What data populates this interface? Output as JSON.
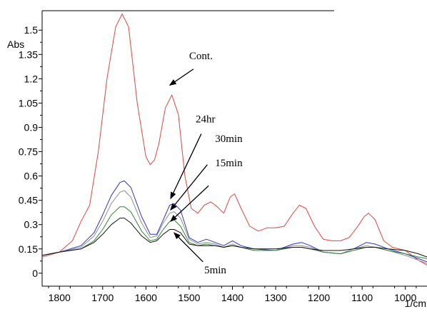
{
  "chart_data": {
    "type": "line",
    "xlabel": "1/cm",
    "ylabel": "Abs",
    "xlim": [
      1840,
      950
    ],
    "x_reversed": true,
    "ylim": [
      -0.08,
      1.62
    ],
    "x_ticks": [
      1800,
      1700,
      1600,
      1500,
      1400,
      1300,
      1200,
      1100,
      1000
    ],
    "x_tick_labels": [
      "1800",
      "1700",
      "1600",
      "1500",
      "1400",
      "1300",
      "1200",
      "1100",
      "1000"
    ],
    "y_ticks": [
      0,
      0.15,
      0.3,
      0.45,
      0.6,
      0.75,
      0.9,
      1.05,
      1.2,
      1.35,
      1.5
    ],
    "y_tick_labels": [
      "0",
      "0.15",
      "0.3",
      "0.45",
      "0.6",
      "0.75",
      "0.9",
      "1.05",
      "1.2",
      "1.35",
      "1.5"
    ],
    "grid": false,
    "legend": "none",
    "series": [
      {
        "name": "Cont.",
        "color": "#e8433b",
        "points": [
          [
            1840,
            0.1
          ],
          [
            1800,
            0.13
          ],
          [
            1770,
            0.2
          ],
          [
            1750,
            0.32
          ],
          [
            1730,
            0.42
          ],
          [
            1710,
            0.75
          ],
          [
            1690,
            1.2
          ],
          [
            1670,
            1.52
          ],
          [
            1655,
            1.6
          ],
          [
            1640,
            1.52
          ],
          [
            1620,
            1.05
          ],
          [
            1600,
            0.72
          ],
          [
            1590,
            0.67
          ],
          [
            1580,
            0.7
          ],
          [
            1570,
            0.8
          ],
          [
            1555,
            1.02
          ],
          [
            1540,
            1.1
          ],
          [
            1525,
            0.98
          ],
          [
            1510,
            0.6
          ],
          [
            1495,
            0.4
          ],
          [
            1480,
            0.37
          ],
          [
            1465,
            0.42
          ],
          [
            1450,
            0.44
          ],
          [
            1435,
            0.41
          ],
          [
            1420,
            0.37
          ],
          [
            1405,
            0.47
          ],
          [
            1395,
            0.49
          ],
          [
            1380,
            0.4
          ],
          [
            1360,
            0.29
          ],
          [
            1340,
            0.26
          ],
          [
            1320,
            0.28
          ],
          [
            1300,
            0.28
          ],
          [
            1280,
            0.29
          ],
          [
            1260,
            0.37
          ],
          [
            1245,
            0.42
          ],
          [
            1230,
            0.4
          ],
          [
            1210,
            0.29
          ],
          [
            1190,
            0.21
          ],
          [
            1170,
            0.2
          ],
          [
            1150,
            0.2
          ],
          [
            1130,
            0.22
          ],
          [
            1110,
            0.29
          ],
          [
            1095,
            0.35
          ],
          [
            1085,
            0.37
          ],
          [
            1070,
            0.33
          ],
          [
            1050,
            0.2
          ],
          [
            1030,
            0.16
          ],
          [
            1000,
            0.14
          ],
          [
            970,
            0.08
          ],
          [
            950,
            0.05
          ]
        ]
      },
      {
        "name": "24hr",
        "color": "#2f33c8",
        "points": [
          [
            1840,
            0.11
          ],
          [
            1800,
            0.13
          ],
          [
            1750,
            0.17
          ],
          [
            1720,
            0.25
          ],
          [
            1700,
            0.36
          ],
          [
            1680,
            0.48
          ],
          [
            1660,
            0.56
          ],
          [
            1650,
            0.57
          ],
          [
            1635,
            0.53
          ],
          [
            1610,
            0.35
          ],
          [
            1590,
            0.24
          ],
          [
            1575,
            0.24
          ],
          [
            1560,
            0.33
          ],
          [
            1545,
            0.42
          ],
          [
            1535,
            0.43
          ],
          [
            1520,
            0.39
          ],
          [
            1500,
            0.22
          ],
          [
            1480,
            0.19
          ],
          [
            1460,
            0.21
          ],
          [
            1440,
            0.19
          ],
          [
            1420,
            0.17
          ],
          [
            1400,
            0.2
          ],
          [
            1380,
            0.17
          ],
          [
            1350,
            0.15
          ],
          [
            1300,
            0.14
          ],
          [
            1260,
            0.18
          ],
          [
            1240,
            0.19
          ],
          [
            1220,
            0.17
          ],
          [
            1190,
            0.13
          ],
          [
            1150,
            0.12
          ],
          [
            1120,
            0.15
          ],
          [
            1090,
            0.19
          ],
          [
            1070,
            0.18
          ],
          [
            1040,
            0.15
          ],
          [
            1000,
            0.12
          ],
          [
            970,
            0.09
          ],
          [
            950,
            0.07
          ]
        ]
      },
      {
        "name": "30min",
        "color": "#8e8e96",
        "points": [
          [
            1840,
            0.11
          ],
          [
            1800,
            0.13
          ],
          [
            1750,
            0.16
          ],
          [
            1720,
            0.23
          ],
          [
            1700,
            0.32
          ],
          [
            1680,
            0.43
          ],
          [
            1660,
            0.5
          ],
          [
            1650,
            0.51
          ],
          [
            1635,
            0.47
          ],
          [
            1610,
            0.31
          ],
          [
            1590,
            0.22
          ],
          [
            1575,
            0.23
          ],
          [
            1560,
            0.31
          ],
          [
            1545,
            0.37
          ],
          [
            1535,
            0.38
          ],
          [
            1520,
            0.34
          ],
          [
            1500,
            0.21
          ],
          [
            1480,
            0.18
          ],
          [
            1460,
            0.19
          ],
          [
            1440,
            0.18
          ],
          [
            1420,
            0.16
          ],
          [
            1400,
            0.18
          ],
          [
            1380,
            0.16
          ],
          [
            1350,
            0.14
          ],
          [
            1300,
            0.14
          ],
          [
            1260,
            0.17
          ],
          [
            1240,
            0.17
          ],
          [
            1220,
            0.16
          ],
          [
            1190,
            0.13
          ],
          [
            1150,
            0.12
          ],
          [
            1120,
            0.15
          ],
          [
            1090,
            0.17
          ],
          [
            1070,
            0.16
          ],
          [
            1040,
            0.14
          ],
          [
            1000,
            0.11
          ],
          [
            970,
            0.08
          ],
          [
            950,
            0.06
          ]
        ]
      },
      {
        "name": "15min",
        "color": "#2f8a2f",
        "points": [
          [
            1840,
            0.11
          ],
          [
            1800,
            0.13
          ],
          [
            1750,
            0.15
          ],
          [
            1720,
            0.2
          ],
          [
            1700,
            0.27
          ],
          [
            1680,
            0.36
          ],
          [
            1660,
            0.41
          ],
          [
            1650,
            0.41
          ],
          [
            1635,
            0.38
          ],
          [
            1610,
            0.26
          ],
          [
            1590,
            0.2
          ],
          [
            1575,
            0.21
          ],
          [
            1560,
            0.27
          ],
          [
            1545,
            0.32
          ],
          [
            1535,
            0.33
          ],
          [
            1520,
            0.29
          ],
          [
            1500,
            0.19
          ],
          [
            1480,
            0.17
          ],
          [
            1460,
            0.18
          ],
          [
            1440,
            0.17
          ],
          [
            1420,
            0.16
          ],
          [
            1400,
            0.17
          ],
          [
            1380,
            0.16
          ],
          [
            1350,
            0.14
          ],
          [
            1300,
            0.14
          ],
          [
            1260,
            0.16
          ],
          [
            1240,
            0.16
          ],
          [
            1220,
            0.15
          ],
          [
            1190,
            0.13
          ],
          [
            1150,
            0.12
          ],
          [
            1120,
            0.14
          ],
          [
            1090,
            0.16
          ],
          [
            1070,
            0.16
          ],
          [
            1040,
            0.14
          ],
          [
            1000,
            0.12
          ],
          [
            970,
            0.1
          ],
          [
            950,
            0.09
          ]
        ]
      },
      {
        "name": "5min",
        "color": "#111111",
        "points": [
          [
            1840,
            0.11
          ],
          [
            1800,
            0.13
          ],
          [
            1750,
            0.15
          ],
          [
            1720,
            0.19
          ],
          [
            1700,
            0.24
          ],
          [
            1680,
            0.3
          ],
          [
            1660,
            0.34
          ],
          [
            1650,
            0.34
          ],
          [
            1635,
            0.31
          ],
          [
            1610,
            0.23
          ],
          [
            1590,
            0.19
          ],
          [
            1575,
            0.2
          ],
          [
            1560,
            0.24
          ],
          [
            1545,
            0.27
          ],
          [
            1535,
            0.27
          ],
          [
            1520,
            0.25
          ],
          [
            1500,
            0.18
          ],
          [
            1480,
            0.17
          ],
          [
            1460,
            0.17
          ],
          [
            1440,
            0.17
          ],
          [
            1420,
            0.16
          ],
          [
            1400,
            0.17
          ],
          [
            1380,
            0.16
          ],
          [
            1350,
            0.15
          ],
          [
            1300,
            0.15
          ],
          [
            1260,
            0.16
          ],
          [
            1240,
            0.16
          ],
          [
            1220,
            0.15
          ],
          [
            1190,
            0.14
          ],
          [
            1150,
            0.14
          ],
          [
            1120,
            0.15
          ],
          [
            1090,
            0.16
          ],
          [
            1070,
            0.16
          ],
          [
            1040,
            0.15
          ],
          [
            1000,
            0.14
          ],
          [
            970,
            0.12
          ],
          [
            950,
            0.1
          ]
        ]
      }
    ],
    "annotations": [
      {
        "text": "Cont.",
        "pos": [
          1500,
          1.32
        ],
        "arrow_from": [
          1490,
          1.26
        ],
        "arrow_to": [
          1545,
          1.16
        ]
      },
      {
        "text": "24hr",
        "pos": [
          1485,
          0.93
        ],
        "arrow_from": [
          1472,
          0.86
        ],
        "arrow_to": [
          1543,
          0.46
        ]
      },
      {
        "text": "30min",
        "pos": [
          1440,
          0.81
        ],
        "arrow_from": [
          1458,
          0.67
        ],
        "arrow_to": [
          1543,
          0.39
        ]
      },
      {
        "text": "15min",
        "pos": [
          1440,
          0.66
        ],
        "arrow_from": [
          1455,
          0.54
        ],
        "arrow_to": [
          1543,
          0.32
        ]
      },
      {
        "text": "5min",
        "pos": [
          1465,
          0.0
        ],
        "arrow_from": [
          1468,
          0.07
        ],
        "arrow_to": [
          1535,
          0.25
        ]
      }
    ]
  }
}
